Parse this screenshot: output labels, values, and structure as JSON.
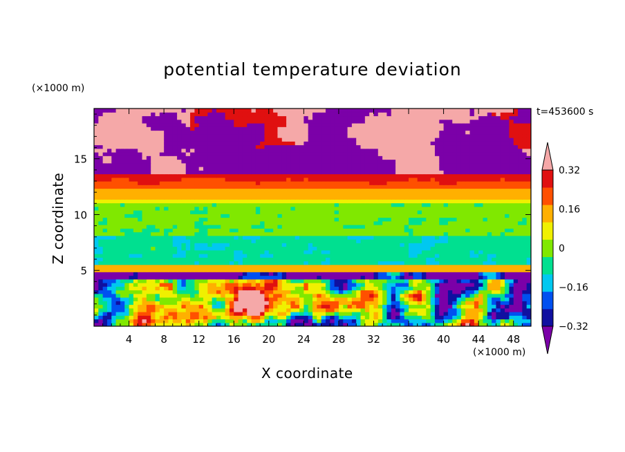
{
  "chart_data": {
    "type": "heatmap",
    "title": "potential temperature deviation",
    "xlabel": "X coordinate",
    "ylabel": "Z coordinate",
    "x_unit_label": "(×1000 m)",
    "y_unit_label": "(×1000 m)",
    "time_label": "t=453600 s",
    "xlim": [
      0,
      50
    ],
    "ylim": [
      0,
      19.5
    ],
    "x_ticks": [
      4,
      8,
      12,
      16,
      20,
      24,
      28,
      32,
      36,
      40,
      44,
      48
    ],
    "x_tick_labels": [
      "4",
      "8",
      "12",
      "16",
      "20",
      "24",
      "28",
      "32",
      "36",
      "40",
      "44",
      "48"
    ],
    "y_ticks": [
      5,
      10,
      15
    ],
    "y_tick_labels": [
      "5",
      "10",
      "15"
    ],
    "colorbar": {
      "levels": [
        -0.4,
        -0.32,
        -0.24,
        -0.16,
        -0.08,
        0,
        0.08,
        0.16,
        0.24,
        0.32,
        0.4
      ],
      "colors": [
        "#7b00a8",
        "#1010a0",
        "#0050f0",
        "#00c8f0",
        "#00e090",
        "#80e800",
        "#f0f000",
        "#ffb000",
        "#ff5000",
        "#e01010",
        "#f5a8a8"
      ],
      "tick_labels": [
        "0.32",
        "0.16",
        "0",
        "−0.16",
        "−0.32"
      ],
      "tick_values": [
        0.32,
        0.16,
        0,
        -0.16,
        -0.32
      ]
    },
    "layers": [
      {
        "z": [
          0,
          5
        ],
        "description": "turbulent mixed field"
      },
      {
        "z": [
          5,
          5.5
        ],
        "value": 0.2
      },
      {
        "z": [
          5.5,
          8
        ],
        "value": -0.05
      },
      {
        "z": [
          8,
          11
        ],
        "value": 0.02
      },
      {
        "z": [
          11,
          13.5
        ],
        "value": 0.25
      },
      {
        "z": [
          13.5,
          19.5
        ],
        "description": "alternating extremes"
      }
    ]
  }
}
